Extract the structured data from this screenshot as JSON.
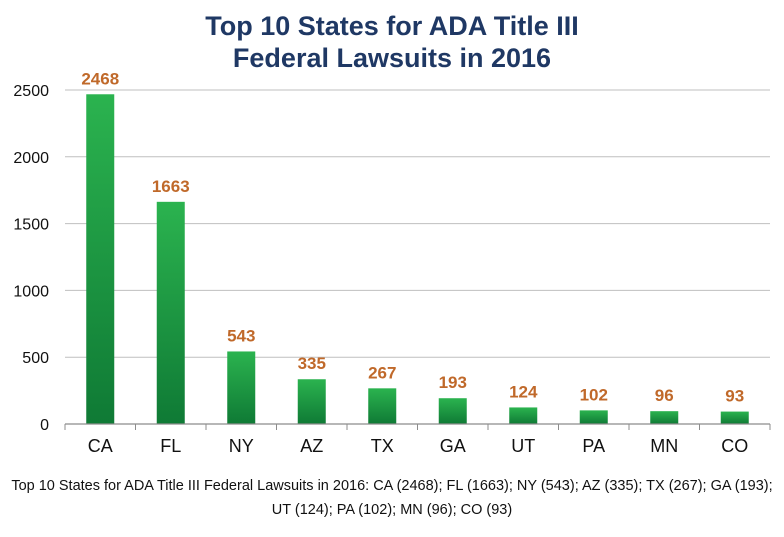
{
  "chart_data": {
    "type": "bar",
    "title": [
      "Top 10 States for ADA Title III",
      "Federal Lawsuits in 2016"
    ],
    "categories": [
      "CA",
      "FL",
      "NY",
      "AZ",
      "TX",
      "GA",
      "UT",
      "PA",
      "MN",
      "CO"
    ],
    "values": [
      2468,
      1663,
      543,
      335,
      267,
      193,
      124,
      102,
      96,
      93
    ],
    "data_labels": [
      "2468",
      "1663",
      "543",
      "335",
      "267",
      "193",
      "124",
      "102",
      "96",
      "93"
    ],
    "yticks": [
      0,
      500,
      1000,
      1500,
      2000,
      2500
    ],
    "ylim": [
      0,
      2500
    ],
    "grid": true,
    "legend": "none",
    "xlabel": "",
    "ylabel": "",
    "colors": {
      "bar_top": "#2bb34f",
      "bar_bottom": "#0f7a35",
      "label": "#c0692a",
      "grid": "#bfbfbf",
      "title": "#1f3864"
    }
  },
  "caption": "Top 10 States for ADA Title III Federal Lawsuits in 2016: CA (2468); FL (1663); NY (543); AZ (335); TX (267); GA (193); UT (124); PA (102); MN (96); CO (93)"
}
